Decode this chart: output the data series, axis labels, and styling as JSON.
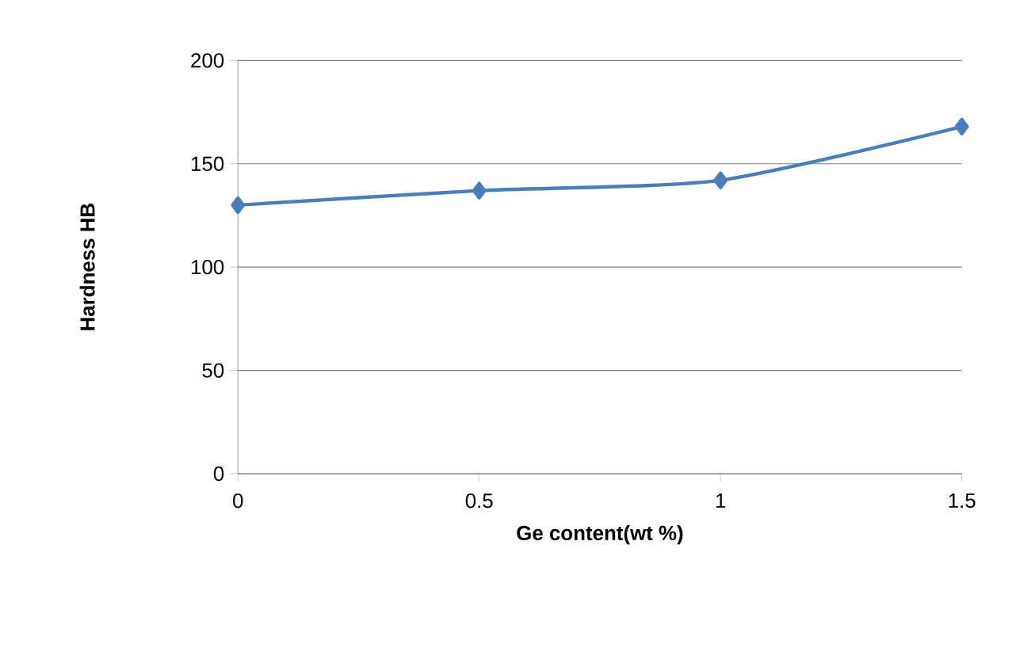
{
  "chart_data": {
    "type": "line",
    "xlabel": "Ge content(wt %)",
    "ylabel": "Hardness HB",
    "x": [
      0,
      0.5,
      1,
      1.5
    ],
    "series": [
      {
        "color": "#4a7ebb",
        "values": [
          130,
          137,
          142,
          168
        ]
      }
    ],
    "xlim": [
      0,
      1.5
    ],
    "xticks": [
      0,
      0.5,
      1,
      1.5
    ],
    "ylim": [
      0,
      200
    ],
    "yticks": [
      0,
      50,
      100,
      150,
      200
    ],
    "grid": "y",
    "marker": "diamond",
    "line_style": "solid"
  }
}
